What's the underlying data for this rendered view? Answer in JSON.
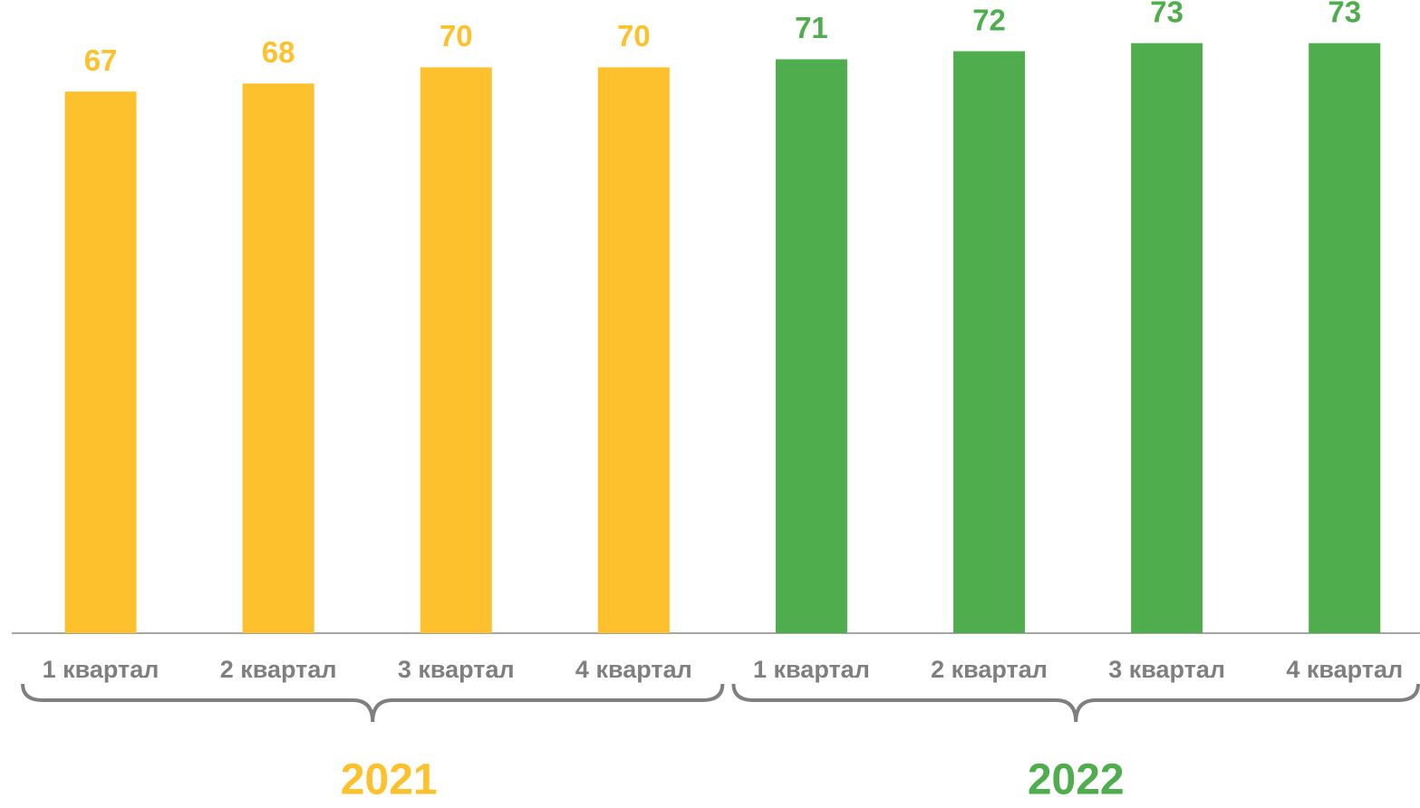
{
  "chart_data": {
    "type": "bar",
    "ylim": [
      0,
      78
    ],
    "series": [
      {
        "name": "2021",
        "color": "#fdc12d",
        "categories": [
          "1 квартал",
          "2 квартал",
          "3 квартал",
          "4 квартал"
        ],
        "values": [
          67,
          68,
          70,
          70
        ]
      },
      {
        "name": "2022",
        "color": "#4fad4e",
        "categories": [
          "1 квартал",
          "2 квартал",
          "3 квартал",
          "4 квартал"
        ],
        "values": [
          71,
          72,
          73,
          73
        ]
      }
    ]
  }
}
